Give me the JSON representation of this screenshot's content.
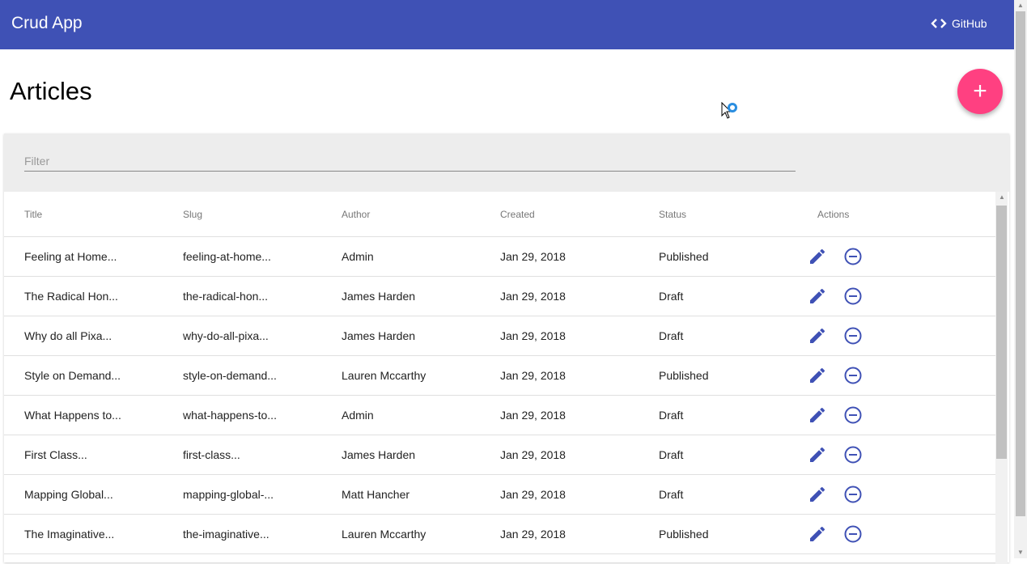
{
  "app": {
    "title": "Crud App",
    "github_label": "GitHub"
  },
  "page": {
    "title": "Articles"
  },
  "filter": {
    "placeholder": "Filter",
    "value": ""
  },
  "table": {
    "columns": [
      "Title",
      "Slug",
      "Author",
      "Created",
      "Status",
      "Actions"
    ],
    "rows": [
      [
        "Feeling at Home...",
        "feeling-at-home...",
        "Admin",
        "Jan 29, 2018",
        "Published"
      ],
      [
        "The Radical Hon...",
        "the-radical-hon...",
        "James Harden",
        "Jan 29, 2018",
        "Draft"
      ],
      [
        "Why do all Pixa...",
        "why-do-all-pixa...",
        "James Harden",
        "Jan 29, 2018",
        "Draft"
      ],
      [
        "Style on Demand...",
        "style-on-demand...",
        "Lauren Mccarthy",
        "Jan 29, 2018",
        "Published"
      ],
      [
        "What Happens to...",
        "what-happens-to...",
        "Admin",
        "Jan 29, 2018",
        "Draft"
      ],
      [
        "First Class...",
        "first-class...",
        "James Harden",
        "Jan 29, 2018",
        "Draft"
      ],
      [
        "Mapping Global...",
        "mapping-global-...",
        "Matt Hancher",
        "Jan 29, 2018",
        "Draft"
      ],
      [
        "The Imaginative...",
        "the-imaginative...",
        "Lauren Mccarthy",
        "Jan 29, 2018",
        "Published"
      ]
    ]
  },
  "colors": {
    "primary": "#3f51b5",
    "accent": "#ff4081"
  },
  "icons": {
    "github": "code-icon",
    "add": "plus-icon",
    "edit": "pencil-icon",
    "delete": "remove-circle-icon"
  }
}
